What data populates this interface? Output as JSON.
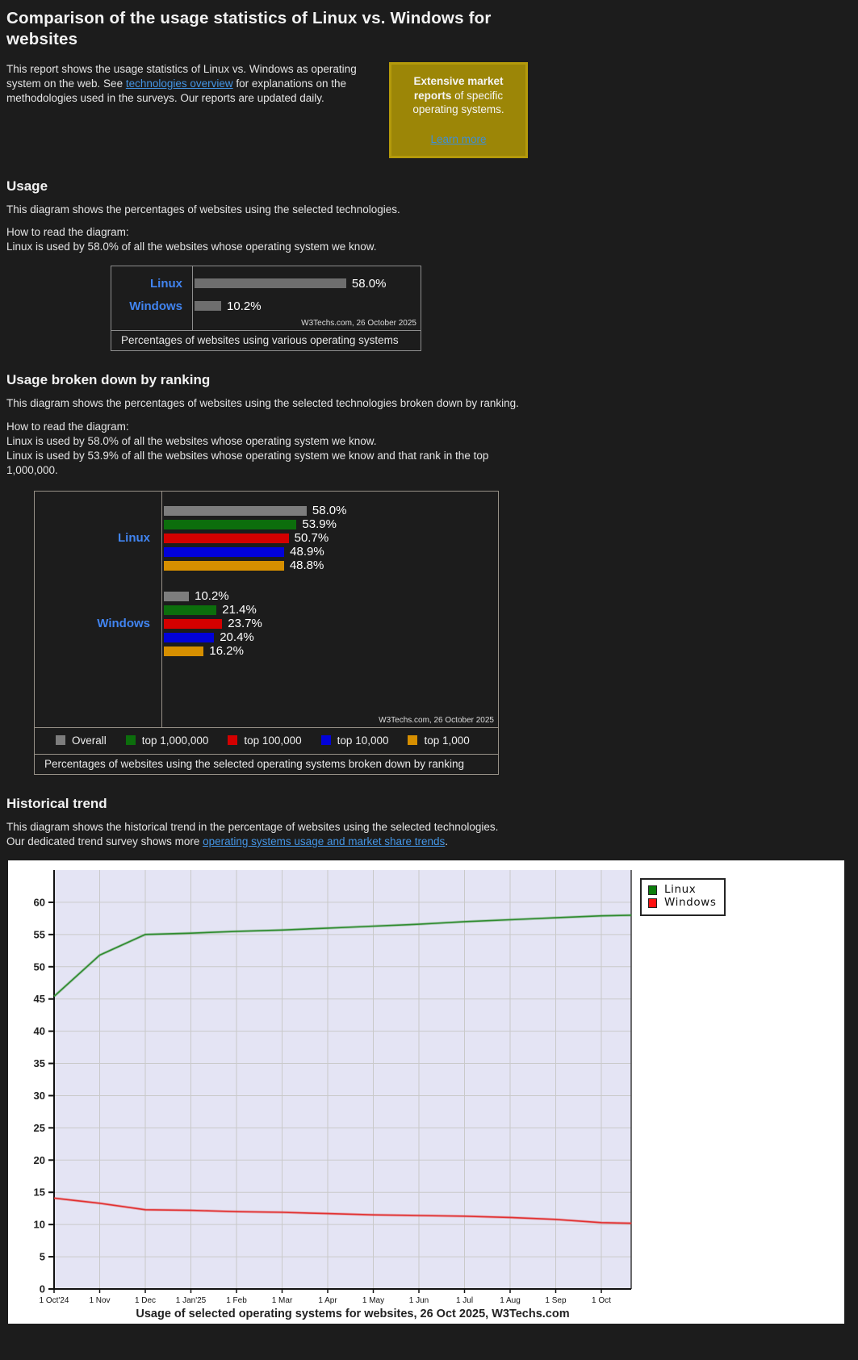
{
  "colors": {
    "background": "#1c1c1c",
    "text": "#e4e4e4",
    "link": "#4495e4",
    "category_label_blue": "#4184f0",
    "promo_background": "#9c8607",
    "promo_border": "#b49a0b"
  },
  "page": {
    "title": "Comparison of the usage statistics of Linux vs. Windows for websites",
    "intro": {
      "before": "This report shows the usage statistics of Linux vs. Windows as operating system on the web. See ",
      "link": "technologies overview",
      "after": " for explanations on the methodologies used in the surveys. Our reports are updated daily."
    },
    "promo": {
      "bold": "Extensive market reports",
      "rest": " of specific operating systems.",
      "link": "Learn more"
    }
  },
  "sections": {
    "usage": {
      "heading": "Usage",
      "desc": "This diagram shows the percentages of websites using the selected technologies.",
      "how_label": "How to read the diagram:",
      "how_line1": "Linux is used by 58.0% of all the websites whose operating system we know."
    },
    "ranking": {
      "heading": "Usage broken down by ranking",
      "desc": "This diagram shows the percentages of websites using the selected technologies broken down by ranking.",
      "how_label": "How to read the diagram:",
      "how_line1": "Linux is used by 58.0% of all the websites whose operating system we know.",
      "how_line2": "Linux is used by 53.9% of all the websites whose operating system we know and that rank in the top 1,000,000."
    },
    "trend": {
      "heading": "Historical trend",
      "desc": "This diagram shows the historical trend in the percentage of websites using the selected technologies.",
      "survey_before": "Our dedicated trend survey shows more ",
      "survey_link": "operating systems usage and market share trends",
      "survey_after": "."
    }
  },
  "chart_data": [
    {
      "type": "bar",
      "title": "Percentages of websites using various operating systems",
      "source": "W3Techs.com, 26 October 2025",
      "categories": [
        "Linux",
        "Windows"
      ],
      "values": [
        58.0,
        10.2
      ],
      "value_labels": [
        "58.0%",
        "10.2%"
      ],
      "bar_color": "#6e6e6e",
      "xlim": [
        0,
        88
      ]
    },
    {
      "type": "bar",
      "title": "Percentages of websites using the selected operating systems broken down by ranking",
      "source": "W3Techs.com, 26 October 2025",
      "categories": [
        "Linux",
        "Windows"
      ],
      "series": [
        {
          "name": "Overall",
          "color": "#7d7d7d",
          "values": [
            58.0,
            10.2
          ]
        },
        {
          "name": "top 1,000,000",
          "color": "#0c6e0c",
          "values": [
            53.9,
            21.4
          ]
        },
        {
          "name": "top 100,000",
          "color": "#d40000",
          "values": [
            50.7,
            23.7
          ]
        },
        {
          "name": "top 10,000",
          "color": "#0202d9",
          "values": [
            48.9,
            20.4
          ]
        },
        {
          "name": "top 1,000",
          "color": "#d68f00",
          "values": [
            48.8,
            16.2
          ]
        }
      ],
      "legend_position": "bottom",
      "xlim": [
        0,
        94
      ]
    },
    {
      "type": "line",
      "title": "Usage of selected operating systems for websites, 26 Oct 2025, W3Techs.com",
      "x_labels": [
        "1 Oct'24",
        "1 Nov",
        "1 Dec",
        "1 Jan'25",
        "1 Feb",
        "1 Mar",
        "1 Apr",
        "1 May",
        "1 Jun",
        "1 Jul",
        "1 Aug",
        "1 Sep",
        "1 Oct"
      ],
      "x_positions": [
        0,
        1,
        2,
        3,
        4,
        5,
        6,
        7,
        8,
        9,
        10,
        11,
        12,
        12.66
      ],
      "ylim": [
        0,
        65
      ],
      "yticks": [
        0,
        5,
        10,
        15,
        20,
        25,
        30,
        35,
        40,
        45,
        50,
        55,
        60
      ],
      "grid": true,
      "plot_background": "#e4e4f4",
      "legend_position": "top-right",
      "series": [
        {
          "name": "Linux",
          "color": "#2e8b2e",
          "swatch": "#0b7d0b",
          "values": [
            45.4,
            51.8,
            55.0,
            55.2,
            55.5,
            55.7,
            56.0,
            56.3,
            56.6,
            57.0,
            57.3,
            57.6,
            57.9,
            58.0
          ]
        },
        {
          "name": "Windows",
          "color": "#e23030",
          "swatch": "#ff1111",
          "values": [
            14.1,
            13.3,
            12.3,
            12.2,
            12.0,
            11.9,
            11.7,
            11.5,
            11.4,
            11.3,
            11.1,
            10.8,
            10.3,
            10.2
          ]
        }
      ]
    }
  ]
}
